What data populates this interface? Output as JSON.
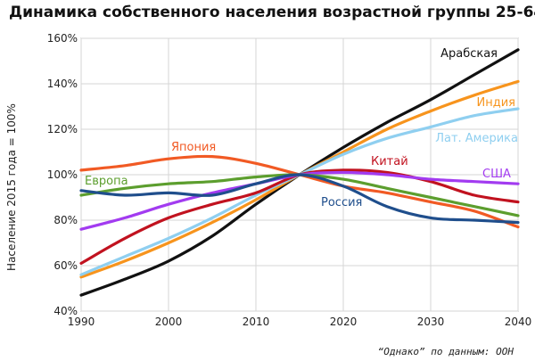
{
  "chart_data": {
    "type": "line",
    "title": "Динамика собственного населения возрастной группы 25-64",
    "ylabel": "Население 2015 года = 100%",
    "xlabel": "",
    "source": "“Однако” по данным: ООН",
    "xlim": [
      1990,
      2040
    ],
    "ylim": [
      40,
      160
    ],
    "x_ticks": [
      "1990",
      "2000",
      "2010",
      "2020",
      "2030",
      "2040"
    ],
    "y_ticks": [
      "40%",
      "60%",
      "80%",
      "100%",
      "120%",
      "140%",
      "160%"
    ],
    "grid": true,
    "x": [
      1990,
      1995,
      2000,
      2005,
      2010,
      2015,
      2020,
      2025,
      2030,
      2035,
      2040
    ],
    "series": [
      {
        "name": "Арабская",
        "color": "#111111",
        "values": [
          47,
          54,
          62,
          73,
          87,
          100,
          112,
          123,
          133,
          144,
          155
        ]
      },
      {
        "name": "Индия",
        "color": "#f7941d",
        "values": [
          55,
          62,
          70,
          79,
          89,
          100,
          110,
          120,
          128,
          135,
          141
        ]
      },
      {
        "name": "Лат. Америка",
        "color": "#8fcff0",
        "values": [
          56,
          64,
          72,
          81,
          91,
          100,
          109,
          116,
          121,
          126,
          129
        ]
      },
      {
        "name": "Япония",
        "color": "#f15a24",
        "values": [
          102,
          104,
          107,
          108,
          105,
          100,
          95,
          92,
          88,
          84,
          77
        ]
      },
      {
        "name": "Китай",
        "color": "#c1121f",
        "values": [
          61,
          72,
          81,
          87,
          92,
          100,
          102,
          101,
          97,
          91,
          88
        ]
      },
      {
        "name": "США",
        "color": "#a23bf0",
        "values": [
          76,
          81,
          87,
          92,
          96,
          100,
          101,
          100,
          98,
          97,
          96
        ]
      },
      {
        "name": "Европа",
        "color": "#5c9e2e",
        "values": [
          91,
          94,
          96,
          97,
          99,
          100,
          98,
          94,
          90,
          86,
          82
        ]
      },
      {
        "name": "Россия",
        "color": "#1f4e8c",
        "values": [
          93,
          91,
          92,
          91,
          96,
          100,
          95,
          86,
          81,
          80,
          79
        ]
      }
    ]
  }
}
